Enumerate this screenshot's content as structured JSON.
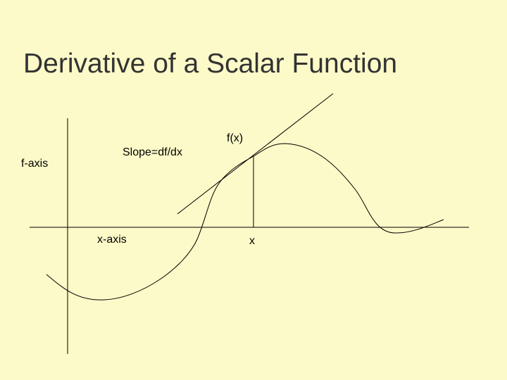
{
  "title": "Derivative of a Scalar Function",
  "labels": {
    "f_axis": "f-axis",
    "slope": "Slope=df/dx",
    "x_axis": "x-axis",
    "fx": "f(x)",
    "x": "x"
  }
}
